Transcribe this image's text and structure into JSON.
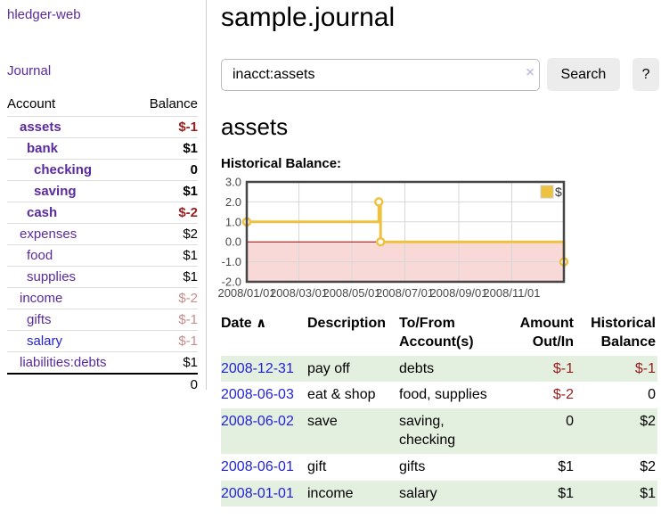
{
  "colors": {
    "link_purple": "#5a2aa0",
    "link_blue": "#2222dd",
    "neg_strong": "#9b1c1c",
    "neg_soft": "#c98c8c",
    "row_stripe_green": "#e3efdf",
    "series_gold": "#EDC240"
  },
  "sidebar": {
    "brand": "hledger-web",
    "nav": {
      "journal": "Journal"
    },
    "accounts": {
      "col_account": "Account",
      "col_balance": "Balance",
      "rows": [
        {
          "name": "assets",
          "balance": "$-1",
          "depth": 1,
          "bold": true,
          "bal": "neg-strong"
        },
        {
          "name": "bank",
          "balance": "$1",
          "depth": 2,
          "bold": true,
          "bal": "pos"
        },
        {
          "name": "checking",
          "balance": "0",
          "depth": 3,
          "bold": true,
          "bal": "pos"
        },
        {
          "name": "saving",
          "balance": "$1",
          "depth": 3,
          "bold": true,
          "bal": "pos"
        },
        {
          "name": "cash",
          "balance": "$-2",
          "depth": 2,
          "bold": true,
          "bal": "neg-strong"
        },
        {
          "name": "expenses",
          "balance": "$2",
          "depth": 1,
          "bold": false,
          "bal": "pos"
        },
        {
          "name": "food",
          "balance": "$1",
          "depth": 2,
          "bold": false,
          "bal": "pos"
        },
        {
          "name": "supplies",
          "balance": "$1",
          "depth": 2,
          "bold": false,
          "bal": "pos"
        },
        {
          "name": "income",
          "balance": "$-2",
          "depth": 1,
          "bold": false,
          "bal": "neg-soft"
        },
        {
          "name": "gifts",
          "balance": "$-1",
          "depth": 2,
          "bold": false,
          "bal": "neg-soft"
        },
        {
          "name": "salary",
          "balance": "$-1",
          "depth": 2,
          "bold": false,
          "bal": "neg-soft",
          "unvisited": true
        },
        {
          "name": "liabilities:debts",
          "balance": "$1",
          "depth": 1,
          "bold": false,
          "bal": "pos"
        }
      ],
      "total": "0"
    }
  },
  "main": {
    "title": "sample.journal",
    "search": {
      "value": "inacct:assets",
      "clear_icon": "×",
      "button": "Search",
      "help": "?"
    },
    "account_heading": "assets",
    "chart_heading": "Historical Balance:"
  },
  "chart_data": {
    "type": "line",
    "step": true,
    "title": "Historical Balance",
    "x_range": [
      "2008-01-01",
      "2008-12-31"
    ],
    "x_ticks": [
      "2008/01/01",
      "2008/03/01",
      "2008/05/01",
      "2008/07/01",
      "2008/09/01",
      "2008/11/01"
    ],
    "y_ticks": [
      "3.0",
      "2.0",
      "1.0",
      "0.0",
      "-1.0",
      "-2.0"
    ],
    "ylim": [
      -2,
      3
    ],
    "grid": true,
    "legend": {
      "label": "$",
      "position": "top-right"
    },
    "series": [
      {
        "name": "$",
        "color": "#EDC240",
        "points": [
          [
            "2008-01-01",
            1
          ],
          [
            "2008-06-01",
            2
          ],
          [
            "2008-06-03",
            0
          ],
          [
            "2008-12-31",
            -1
          ]
        ]
      }
    ],
    "negative_region_fill": "#f9d8d8",
    "zero_line_color": "#9e0000",
    "border_color": "#454545",
    "grid_color": "#d7d7d7",
    "axis_text_color": "#4a4a4a"
  },
  "register": {
    "headers": {
      "date": "Date",
      "sort_icon": "∧",
      "description": "Description",
      "accounts": "To/From Account(s)",
      "amount": "Amount Out/In",
      "balance": "Historical Balance"
    },
    "rows": [
      {
        "date": "2008-12-31",
        "description": "pay off",
        "accounts": "debts",
        "amount": "$-1",
        "amount_neg": true,
        "balance": "$-1",
        "balance_neg": true
      },
      {
        "date": "2008-06-03",
        "description": "eat & shop",
        "accounts": "food, supplies",
        "amount": "$-2",
        "amount_neg": true,
        "balance": "0",
        "balance_neg": false
      },
      {
        "date": "2008-06-02",
        "description": "save",
        "accounts": "saving, checking",
        "amount": "0",
        "amount_neg": false,
        "balance": "$2",
        "balance_neg": false
      },
      {
        "date": "2008-06-01",
        "description": "gift",
        "accounts": "gifts",
        "amount": "$1",
        "amount_neg": false,
        "balance": "$2",
        "balance_neg": false
      },
      {
        "date": "2008-01-01",
        "description": "income",
        "accounts": "salary",
        "amount": "$1",
        "amount_neg": false,
        "balance": "$1",
        "balance_neg": false
      }
    ]
  }
}
